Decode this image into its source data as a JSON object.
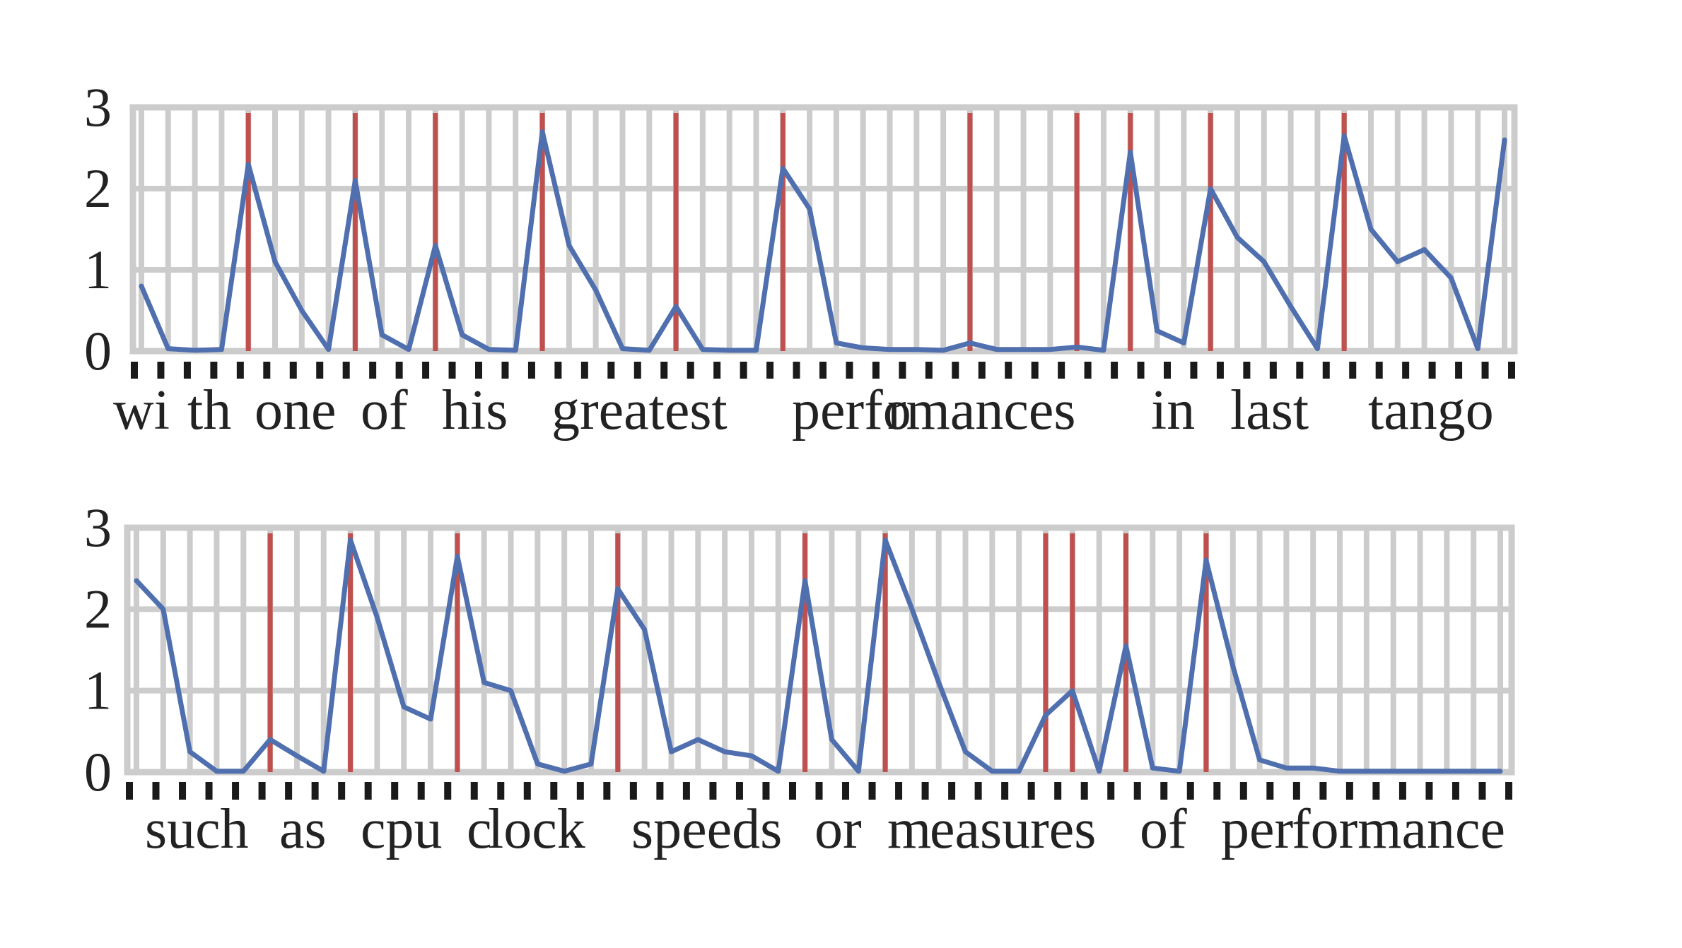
{
  "chart_data": [
    {
      "type": "line",
      "sentence": "with one of his greatest performances in last tango",
      "caption_words": [
        "wi",
        "th",
        "one",
        "of",
        "his",
        "greatest",
        "perfo",
        "rmances",
        "in",
        "last",
        "tango"
      ],
      "ylim": [
        0,
        3
      ],
      "yticks": [
        "0",
        "1",
        "2",
        "3"
      ],
      "grid": true,
      "n_positions": 52,
      "boundary_positions": [
        4,
        8,
        11,
        15,
        20,
        24,
        31,
        35,
        37,
        40,
        45
      ],
      "series": [
        {
          "color": "#4f6faf",
          "values": [
            0.8,
            0.03,
            0.01,
            0.02,
            2.3,
            1.1,
            0.5,
            0.02,
            2.1,
            0.2,
            0.02,
            1.3,
            0.2,
            0.02,
            0.01,
            2.7,
            1.3,
            0.75,
            0.03,
            0.01,
            0.55,
            0.02,
            0.01,
            0.01,
            2.25,
            1.75,
            0.1,
            0.04,
            0.02,
            0.02,
            0.01,
            0.1,
            0.02,
            0.02,
            0.02,
            0.05,
            0.01,
            2.45,
            0.25,
            0.1,
            2.0,
            1.4,
            1.1,
            0.55,
            0.03,
            2.65,
            1.5,
            1.1,
            1.25,
            0.9,
            0.03,
            2.6
          ]
        }
      ]
    },
    {
      "type": "line",
      "sentence": "such as cpu clock speeds or measures of performance",
      "caption_words": [
        "such",
        "as",
        "cpu",
        "c",
        "lock",
        "speeds",
        "or",
        "m",
        "easures",
        "of",
        "per",
        "formance"
      ],
      "ylim": [
        0,
        3
      ],
      "yticks": [
        "0",
        "1",
        "2",
        "3"
      ],
      "grid": true,
      "n_positions": 52,
      "boundary_positions": [
        5,
        8,
        12,
        18,
        25,
        28,
        34,
        35,
        37,
        40
      ],
      "series": [
        {
          "color": "#4f6faf",
          "values": [
            2.35,
            2.0,
            0.25,
            0.01,
            0.01,
            0.4,
            0.2,
            0.01,
            2.85,
            1.9,
            0.8,
            0.65,
            2.65,
            1.1,
            1.0,
            0.1,
            0.01,
            0.1,
            2.25,
            1.75,
            0.25,
            0.4,
            0.25,
            0.2,
            0.01,
            2.35,
            0.4,
            0.01,
            2.85,
            2.0,
            1.1,
            0.25,
            0.01,
            0.01,
            0.7,
            1.0,
            0.01,
            1.55,
            0.05,
            0.01,
            2.6,
            1.3,
            0.15,
            0.05,
            0.05,
            0.01,
            0.01,
            0.01,
            0.01,
            0.01,
            0.01,
            0.01
          ]
        }
      ]
    }
  ],
  "colors": {
    "grid": "#cccccc",
    "series_line": "#4f6faf",
    "boundary_line": "#c0504d",
    "tick_marks": "#1a1a1a",
    "text": "#222222"
  }
}
